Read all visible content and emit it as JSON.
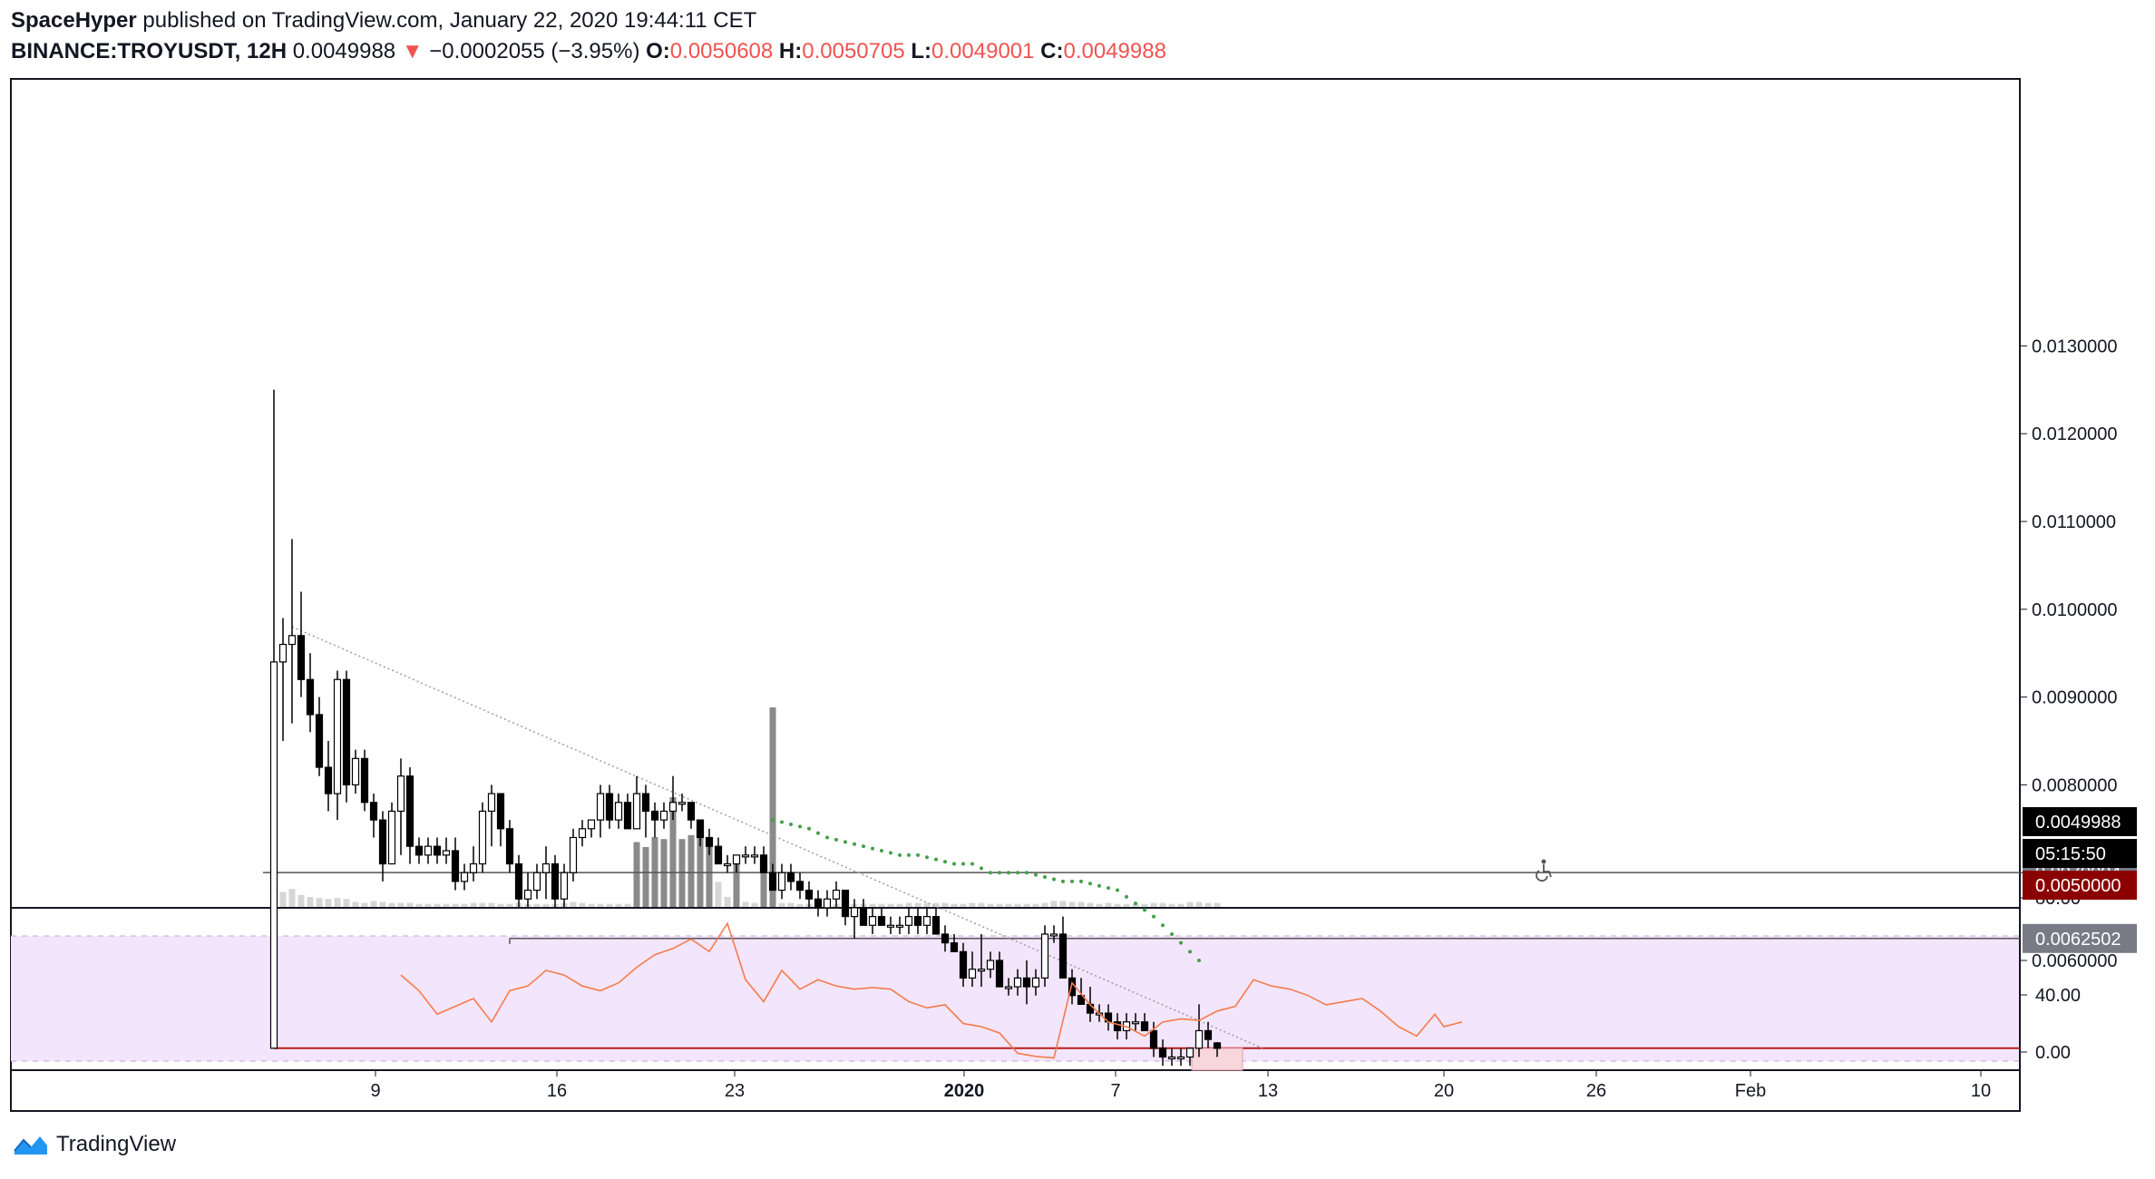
{
  "header": {
    "author": "SpaceHyper",
    "published": "published on TradingView.com, January 22, 2020 19:44:11 CET",
    "symbol": "BINANCE:TROYUSDT, 12H",
    "last": "0.0049988",
    "change_arrow": "▼",
    "change": "−0.0002055 (−3.95%)",
    "o_label": "O:",
    "o_value": "0.0050608",
    "h_label": "H:",
    "h_value": "0.0050705",
    "l_label": "L:",
    "l_value": "0.0049001",
    "c_label": "C:",
    "c_value": "0.0049988"
  },
  "footer": {
    "brand": "TradingView",
    "icon": "tradingview-logo-icon"
  },
  "colors": {
    "up_body": "#ffffff",
    "down_body": "#000000",
    "wick": "#000000",
    "volume": "#9e9e9e",
    "rsi_line": "#f57c4a",
    "rsi_band": "#f3e5fb",
    "support_line": "#b71c1c",
    "trend_line": "#9e9e9e",
    "dotted_ma": "#43a047",
    "hline": "#555555",
    "price_label_bg": "#787b86"
  },
  "chart_data": {
    "type": "candlestick",
    "title": "",
    "interval": "12H",
    "ylim": [
      0.0044,
      0.0135
    ],
    "price_axis_ticks": [
      "0.0130000",
      "0.0120000",
      "0.0110000",
      "0.0100000",
      "0.0090000",
      "0.0080000",
      "0.0070000",
      "0.0060000"
    ],
    "x_tick_labels": [
      "9",
      "16",
      "23",
      "2020",
      "7",
      "13",
      "20",
      "26",
      "Feb",
      "10"
    ],
    "price_labels": {
      "hline_1": "0.0070004",
      "hline_2": "0.0062502",
      "last_price": "0.0049988",
      "countdown": "05:15:50",
      "support": "0.0050000"
    },
    "horizontal_lines": [
      0.0070004,
      0.0062502,
      0.005
    ],
    "candles": [
      {
        "o": 0.005,
        "h": 0.0125,
        "l": 0.005,
        "c": 0.0094,
        "v": 0.35
      },
      {
        "o": 0.0094,
        "h": 0.0099,
        "l": 0.0085,
        "c": 0.0096,
        "v": 0.15
      },
      {
        "o": 0.0096,
        "h": 0.0108,
        "l": 0.0087,
        "c": 0.0097,
        "v": 0.18
      },
      {
        "o": 0.0097,
        "h": 0.0102,
        "l": 0.009,
        "c": 0.0092,
        "v": 0.12
      },
      {
        "o": 0.0092,
        "h": 0.0095,
        "l": 0.0086,
        "c": 0.0088,
        "v": 0.1
      },
      {
        "o": 0.0088,
        "h": 0.009,
        "l": 0.0081,
        "c": 0.0082,
        "v": 0.09
      },
      {
        "o": 0.0082,
        "h": 0.0085,
        "l": 0.0077,
        "c": 0.0079,
        "v": 0.08
      },
      {
        "o": 0.0079,
        "h": 0.0093,
        "l": 0.0076,
        "c": 0.0092,
        "v": 0.09
      },
      {
        "o": 0.0092,
        "h": 0.0093,
        "l": 0.0078,
        "c": 0.008,
        "v": 0.08
      },
      {
        "o": 0.008,
        "h": 0.0084,
        "l": 0.0079,
        "c": 0.0083,
        "v": 0.05
      },
      {
        "o": 0.0083,
        "h": 0.0084,
        "l": 0.0077,
        "c": 0.0078,
        "v": 0.04
      },
      {
        "o": 0.0078,
        "h": 0.0079,
        "l": 0.0074,
        "c": 0.0076,
        "v": 0.06
      },
      {
        "o": 0.0076,
        "h": 0.0077,
        "l": 0.0069,
        "c": 0.0071,
        "v": 0.05
      },
      {
        "o": 0.0071,
        "h": 0.0078,
        "l": 0.0071,
        "c": 0.0077,
        "v": 0.04
      },
      {
        "o": 0.0077,
        "h": 0.0083,
        "l": 0.0072,
        "c": 0.0081,
        "v": 0.04
      },
      {
        "o": 0.0081,
        "h": 0.0082,
        "l": 0.0071,
        "c": 0.0073,
        "v": 0.04
      },
      {
        "o": 0.0073,
        "h": 0.0074,
        "l": 0.0071,
        "c": 0.0072,
        "v": 0.03
      },
      {
        "o": 0.0072,
        "h": 0.0074,
        "l": 0.0071,
        "c": 0.0073,
        "v": 0.03
      },
      {
        "o": 0.0073,
        "h": 0.0074,
        "l": 0.0071,
        "c": 0.0072,
        "v": 0.03
      },
      {
        "o": 0.0072,
        "h": 0.0074,
        "l": 0.0071,
        "c": 0.00725,
        "v": 0.03
      },
      {
        "o": 0.00725,
        "h": 0.0074,
        "l": 0.0068,
        "c": 0.0069,
        "v": 0.03
      },
      {
        "o": 0.0069,
        "h": 0.0071,
        "l": 0.0068,
        "c": 0.007,
        "v": 0.03
      },
      {
        "o": 0.007,
        "h": 0.0073,
        "l": 0.0069,
        "c": 0.0071,
        "v": 0.04
      },
      {
        "o": 0.0071,
        "h": 0.0078,
        "l": 0.007,
        "c": 0.0077,
        "v": 0.04
      },
      {
        "o": 0.0077,
        "h": 0.008,
        "l": 0.0073,
        "c": 0.0079,
        "v": 0.04
      },
      {
        "o": 0.0079,
        "h": 0.0079,
        "l": 0.0073,
        "c": 0.0075,
        "v": 0.03
      },
      {
        "o": 0.0075,
        "h": 0.0076,
        "l": 0.007,
        "c": 0.0071,
        "v": 0.03
      },
      {
        "o": 0.0071,
        "h": 0.0072,
        "l": 0.0066,
        "c": 0.0067,
        "v": 0.04
      },
      {
        "o": 0.0067,
        "h": 0.007,
        "l": 0.0066,
        "c": 0.0068,
        "v": 0.03
      },
      {
        "o": 0.0068,
        "h": 0.0071,
        "l": 0.0067,
        "c": 0.007,
        "v": 0.03
      },
      {
        "o": 0.007,
        "h": 0.0073,
        "l": 0.0067,
        "c": 0.0071,
        "v": 0.03
      },
      {
        "o": 0.0071,
        "h": 0.0072,
        "l": 0.0066,
        "c": 0.0067,
        "v": 0.03
      },
      {
        "o": 0.0067,
        "h": 0.0071,
        "l": 0.0066,
        "c": 0.007,
        "v": 0.04
      },
      {
        "o": 0.007,
        "h": 0.0075,
        "l": 0.0069,
        "c": 0.0074,
        "v": 0.05
      },
      {
        "o": 0.0074,
        "h": 0.0076,
        "l": 0.0073,
        "c": 0.0075,
        "v": 0.04
      },
      {
        "o": 0.0075,
        "h": 0.0076,
        "l": 0.0074,
        "c": 0.0076,
        "v": 0.03
      },
      {
        "o": 0.0076,
        "h": 0.008,
        "l": 0.0074,
        "c": 0.0079,
        "v": 0.03
      },
      {
        "o": 0.0079,
        "h": 0.008,
        "l": 0.0075,
        "c": 0.0076,
        "v": 0.03
      },
      {
        "o": 0.0076,
        "h": 0.0079,
        "l": 0.0075,
        "c": 0.0078,
        "v": 0.03
      },
      {
        "o": 0.0078,
        "h": 0.0079,
        "l": 0.0075,
        "c": 0.0075,
        "v": 0.03
      },
      {
        "o": 0.0075,
        "h": 0.0081,
        "l": 0.0075,
        "c": 0.0079,
        "v": 0.65
      },
      {
        "o": 0.0079,
        "h": 0.008,
        "l": 0.0074,
        "c": 0.0077,
        "v": 0.6
      },
      {
        "o": 0.0077,
        "h": 0.0078,
        "l": 0.0074,
        "c": 0.0076,
        "v": 0.7
      },
      {
        "o": 0.0076,
        "h": 0.0078,
        "l": 0.0075,
        "c": 0.0077,
        "v": 0.68
      },
      {
        "o": 0.0077,
        "h": 0.0081,
        "l": 0.0076,
        "c": 0.0078,
        "v": 1.1
      },
      {
        "o": 0.0078,
        "h": 0.0079,
        "l": 0.0077,
        "c": 0.0078,
        "v": 0.68
      },
      {
        "o": 0.0078,
        "h": 0.0078,
        "l": 0.0075,
        "c": 0.0076,
        "v": 0.72
      },
      {
        "o": 0.0076,
        "h": 0.0076,
        "l": 0.0073,
        "c": 0.0074,
        "v": 0.75
      },
      {
        "o": 0.0074,
        "h": 0.0075,
        "l": 0.0072,
        "c": 0.0073,
        "v": 0.68
      },
      {
        "o": 0.0073,
        "h": 0.0074,
        "l": 0.0071,
        "c": 0.0071,
        "v": 0.25
      },
      {
        "o": 0.0071,
        "h": 0.0072,
        "l": 0.007,
        "c": 0.0071,
        "v": 0.1
      },
      {
        "o": 0.0071,
        "h": 0.0072,
        "l": 0.007,
        "c": 0.0072,
        "v": 0.5
      },
      {
        "o": 0.0072,
        "h": 0.0073,
        "l": 0.0071,
        "c": 0.0072,
        "v": 0.05
      },
      {
        "o": 0.0072,
        "h": 0.0073,
        "l": 0.0071,
        "c": 0.0072,
        "v": 0.04
      },
      {
        "o": 0.0072,
        "h": 0.0073,
        "l": 0.007,
        "c": 0.007,
        "v": 0.43
      },
      {
        "o": 0.007,
        "h": 0.0071,
        "l": 0.0068,
        "c": 0.0068,
        "v": 2.0
      },
      {
        "o": 0.0068,
        "h": 0.0071,
        "l": 0.0067,
        "c": 0.007,
        "v": 0.04
      },
      {
        "o": 0.007,
        "h": 0.0071,
        "l": 0.0068,
        "c": 0.0069,
        "v": 0.04
      },
      {
        "o": 0.0069,
        "h": 0.007,
        "l": 0.0067,
        "c": 0.0068,
        "v": 0.03
      },
      {
        "o": 0.0068,
        "h": 0.0069,
        "l": 0.0066,
        "c": 0.0067,
        "v": 0.03
      },
      {
        "o": 0.0067,
        "h": 0.0068,
        "l": 0.0065,
        "c": 0.0066,
        "v": 0.03
      },
      {
        "o": 0.0066,
        "h": 0.0068,
        "l": 0.0065,
        "c": 0.0067,
        "v": 0.03
      },
      {
        "o": 0.0067,
        "h": 0.0069,
        "l": 0.0066,
        "c": 0.0068,
        "v": 0.03
      },
      {
        "o": 0.0068,
        "h": 0.0068,
        "l": 0.0064,
        "c": 0.0065,
        "v": 0.03
      },
      {
        "o": 0.0065,
        "h": 0.0067,
        "l": 0.00625,
        "c": 0.0066,
        "v": 0.03
      },
      {
        "o": 0.0066,
        "h": 0.0067,
        "l": 0.0064,
        "c": 0.0064,
        "v": 0.03
      },
      {
        "o": 0.0064,
        "h": 0.0066,
        "l": 0.0063,
        "c": 0.0065,
        "v": 0.03
      },
      {
        "o": 0.0065,
        "h": 0.0066,
        "l": 0.0064,
        "c": 0.0064,
        "v": 0.03
      },
      {
        "o": 0.0064,
        "h": 0.0065,
        "l": 0.0063,
        "c": 0.0064,
        "v": 0.03
      },
      {
        "o": 0.0064,
        "h": 0.0065,
        "l": 0.0063,
        "c": 0.0064,
        "v": 0.03
      },
      {
        "o": 0.0064,
        "h": 0.0066,
        "l": 0.0063,
        "c": 0.0065,
        "v": 0.04
      },
      {
        "o": 0.0065,
        "h": 0.0066,
        "l": 0.0063,
        "c": 0.0064,
        "v": 0.04
      },
      {
        "o": 0.0064,
        "h": 0.0066,
        "l": 0.0063,
        "c": 0.0065,
        "v": 0.04
      },
      {
        "o": 0.0065,
        "h": 0.0066,
        "l": 0.0063,
        "c": 0.0063,
        "v": 0.04
      },
      {
        "o": 0.0063,
        "h": 0.0064,
        "l": 0.0061,
        "c": 0.0062,
        "v": 0.04
      },
      {
        "o": 0.0062,
        "h": 0.0063,
        "l": 0.0061,
        "c": 0.0061,
        "v": 0.03
      },
      {
        "o": 0.0061,
        "h": 0.0062,
        "l": 0.0057,
        "c": 0.0058,
        "v": 0.03
      },
      {
        "o": 0.0058,
        "h": 0.0061,
        "l": 0.0057,
        "c": 0.0059,
        "v": 0.04
      },
      {
        "o": 0.0059,
        "h": 0.0063,
        "l": 0.0057,
        "c": 0.0059,
        "v": 0.04
      },
      {
        "o": 0.0059,
        "h": 0.0061,
        "l": 0.0058,
        "c": 0.006,
        "v": 0.03
      },
      {
        "o": 0.006,
        "h": 0.0061,
        "l": 0.0057,
        "c": 0.0057,
        "v": 0.03
      },
      {
        "o": 0.0057,
        "h": 0.0058,
        "l": 0.0056,
        "c": 0.0057,
        "v": 0.03
      },
      {
        "o": 0.0057,
        "h": 0.0059,
        "l": 0.0056,
        "c": 0.0058,
        "v": 0.03
      },
      {
        "o": 0.0058,
        "h": 0.006,
        "l": 0.0055,
        "c": 0.0057,
        "v": 0.03
      },
      {
        "o": 0.0057,
        "h": 0.0059,
        "l": 0.0056,
        "c": 0.0058,
        "v": 0.03
      },
      {
        "o": 0.0058,
        "h": 0.0064,
        "l": 0.0057,
        "c": 0.0063,
        "v": 0.04
      },
      {
        "o": 0.0063,
        "h": 0.0064,
        "l": 0.0062,
        "c": 0.0063,
        "v": 0.06
      },
      {
        "o": 0.0063,
        "h": 0.0065,
        "l": 0.0058,
        "c": 0.0058,
        "v": 0.06
      },
      {
        "o": 0.0058,
        "h": 0.0059,
        "l": 0.0055,
        "c": 0.0056,
        "v": 0.05
      },
      {
        "o": 0.0056,
        "h": 0.0058,
        "l": 0.0055,
        "c": 0.0055,
        "v": 0.05
      },
      {
        "o": 0.0055,
        "h": 0.0057,
        "l": 0.0053,
        "c": 0.0054,
        "v": 0.04
      },
      {
        "o": 0.0054,
        "h": 0.0055,
        "l": 0.0053,
        "c": 0.0054,
        "v": 0.03
      },
      {
        "o": 0.0054,
        "h": 0.0055,
        "l": 0.0052,
        "c": 0.0053,
        "v": 0.04
      },
      {
        "o": 0.0053,
        "h": 0.0054,
        "l": 0.0051,
        "c": 0.0052,
        "v": 0.03
      },
      {
        "o": 0.0052,
        "h": 0.0054,
        "l": 0.0051,
        "c": 0.0053,
        "v": 0.03
      },
      {
        "o": 0.0053,
        "h": 0.0054,
        "l": 0.0052,
        "c": 0.0053,
        "v": 0.03
      },
      {
        "o": 0.0053,
        "h": 0.0054,
        "l": 0.0052,
        "c": 0.0052,
        "v": 0.03
      },
      {
        "o": 0.0052,
        "h": 0.0053,
        "l": 0.0049,
        "c": 0.005,
        "v": 0.04
      },
      {
        "o": 0.005,
        "h": 0.0051,
        "l": 0.0048,
        "c": 0.0049,
        "v": 0.04
      },
      {
        "o": 0.0049,
        "h": 0.005,
        "l": 0.0048,
        "c": 0.0049,
        "v": 0.03
      },
      {
        "o": 0.0049,
        "h": 0.005,
        "l": 0.0048,
        "c": 0.0049,
        "v": 0.03
      },
      {
        "o": 0.0049,
        "h": 0.005,
        "l": 0.0048,
        "c": 0.005,
        "v": 0.05
      },
      {
        "o": 0.005,
        "h": 0.0055,
        "l": 0.0049,
        "c": 0.0052,
        "v": 0.05
      },
      {
        "o": 0.0052,
        "h": 0.0053,
        "l": 0.005,
        "c": 0.0051,
        "v": 0.04
      },
      {
        "o": 0.0050608,
        "h": 0.0050705,
        "l": 0.0049001,
        "c": 0.0049988,
        "v": 0.04
      }
    ],
    "dotted_ma": [
      [
        55,
        0.0076
      ],
      [
        57,
        0.00755
      ],
      [
        59,
        0.0075
      ],
      [
        61,
        0.0074
      ],
      [
        63,
        0.00735
      ],
      [
        65,
        0.0073
      ],
      [
        67,
        0.00725
      ],
      [
        69,
        0.0072
      ],
      [
        71,
        0.0072
      ],
      [
        73,
        0.00715
      ],
      [
        75,
        0.0071
      ],
      [
        77,
        0.0071
      ],
      [
        79,
        0.007
      ],
      [
        81,
        0.007
      ],
      [
        83,
        0.007
      ],
      [
        85,
        0.00695
      ],
      [
        87,
        0.0069
      ],
      [
        89,
        0.0069
      ],
      [
        91,
        0.00685
      ],
      [
        93,
        0.0068
      ],
      [
        95,
        0.00665
      ],
      [
        97,
        0.0065
      ],
      [
        99,
        0.0063
      ],
      [
        101,
        0.0061
      ],
      [
        103,
        0.0059
      ]
    ],
    "rsi": {
      "label_ticks": [
        "80.00",
        "40.00",
        "0.00"
      ],
      "band": [
        20,
        80
      ],
      "values": [
        [
          14,
          55
        ],
        [
          16,
          45
        ],
        [
          18,
          30
        ],
        [
          20,
          35
        ],
        [
          22,
          40
        ],
        [
          24,
          25
        ],
        [
          26,
          45
        ],
        [
          28,
          48
        ],
        [
          30,
          58
        ],
        [
          32,
          55
        ],
        [
          34,
          48
        ],
        [
          36,
          45
        ],
        [
          38,
          50
        ],
        [
          40,
          60
        ],
        [
          42,
          68
        ],
        [
          44,
          72
        ],
        [
          46,
          78
        ],
        [
          48,
          70
        ],
        [
          50,
          88
        ],
        [
          52,
          52
        ],
        [
          54,
          38
        ],
        [
          56,
          58
        ],
        [
          58,
          46
        ],
        [
          60,
          52
        ],
        [
          62,
          48
        ],
        [
          64,
          46
        ],
        [
          66,
          47
        ],
        [
          68,
          46
        ],
        [
          70,
          38
        ],
        [
          72,
          34
        ],
        [
          74,
          36
        ],
        [
          76,
          24
        ],
        [
          78,
          22
        ],
        [
          80,
          18
        ],
        [
          82,
          5
        ],
        [
          84,
          3
        ],
        [
          86,
          2
        ],
        [
          88,
          50
        ],
        [
          90,
          36
        ],
        [
          92,
          25
        ],
        [
          94,
          22
        ],
        [
          96,
          16
        ],
        [
          98,
          25
        ],
        [
          100,
          27
        ],
        [
          102,
          26
        ],
        [
          104,
          32
        ],
        [
          106,
          35
        ],
        [
          108,
          52
        ],
        [
          110,
          48
        ],
        [
          112,
          46
        ],
        [
          114,
          42
        ],
        [
          116,
          36
        ],
        [
          118,
          38
        ],
        [
          120,
          40
        ],
        [
          122,
          32
        ],
        [
          124,
          22
        ],
        [
          126,
          16
        ],
        [
          128,
          30
        ],
        [
          129,
          22
        ],
        [
          131,
          25
        ]
      ]
    }
  }
}
